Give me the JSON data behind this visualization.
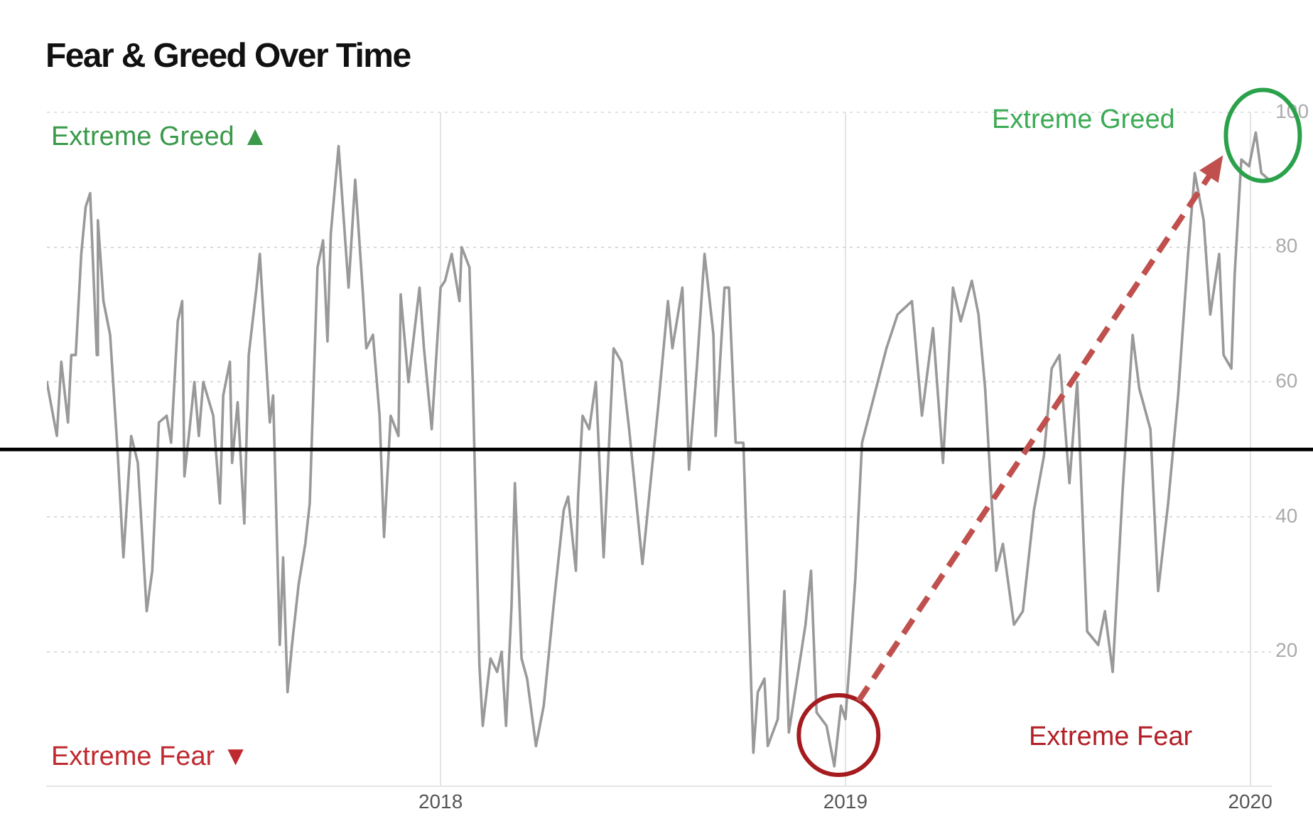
{
  "chart_data": {
    "type": "line",
    "title": "Fear & Greed Over Time",
    "x": [
      "2017-01-11",
      "2017-01-20",
      "2017-01-24",
      "2017-01-30",
      "2017-02-02",
      "2017-02-06",
      "2017-02-11",
      "2017-02-15",
      "2017-02-19",
      "2017-02-25",
      "2017-02-26",
      "2017-03-03",
      "2017-03-09",
      "2017-03-16",
      "2017-03-21",
      "2017-03-28",
      "2017-04-03",
      "2017-04-11",
      "2017-04-16",
      "2017-04-22",
      "2017-04-29",
      "2017-05-03",
      "2017-05-09",
      "2017-05-13",
      "2017-05-15",
      "2017-05-19",
      "2017-05-24",
      "2017-05-28",
      "2017-06-01",
      "2017-06-10",
      "2017-06-16",
      "2017-06-19",
      "2017-06-25",
      "2017-06-27",
      "2017-07-02",
      "2017-07-08",
      "2017-07-12",
      "2017-07-19",
      "2017-07-22",
      "2017-07-27",
      "2017-07-31",
      "2017-08-03",
      "2017-08-09",
      "2017-08-12",
      "2017-08-16",
      "2017-08-20",
      "2017-08-26",
      "2017-09-01",
      "2017-09-05",
      "2017-09-12",
      "2017-09-17",
      "2017-09-21",
      "2017-09-24",
      "2017-10-01",
      "2017-10-10",
      "2017-10-16",
      "2017-10-23",
      "2017-10-26",
      "2017-11-01",
      "2017-11-07",
      "2017-11-11",
      "2017-11-17",
      "2017-11-24",
      "2017-11-26",
      "2017-12-03",
      "2017-12-13",
      "2017-12-17",
      "2017-12-24",
      "2018-01-01",
      "2018-01-05",
      "2018-01-11",
      "2018-01-18",
      "2018-01-20",
      "2018-01-27",
      "2018-01-30",
      "2018-02-05",
      "2018-02-08",
      "2018-02-15",
      "2018-02-21",
      "2018-02-25",
      "2018-03-01",
      "2018-03-06",
      "2018-03-09",
      "2018-03-15",
      "2018-03-20",
      "2018-03-28",
      "2018-04-04",
      "2018-04-13",
      "2018-04-22",
      "2018-04-26",
      "2018-05-03",
      "2018-05-05",
      "2018-05-09",
      "2018-05-15",
      "2018-05-21",
      "2018-05-28",
      "2018-06-06",
      "2018-06-13",
      "2018-06-20",
      "2018-07-02",
      "2018-07-08",
      "2018-07-16",
      "2018-07-25",
      "2018-07-29",
      "2018-08-07",
      "2018-08-13",
      "2018-08-20",
      "2018-08-27",
      "2018-09-04",
      "2018-09-06",
      "2018-09-14",
      "2018-09-18",
      "2018-09-24",
      "2018-10-01",
      "2018-10-10",
      "2018-10-14",
      "2018-10-20",
      "2018-10-23",
      "2018-11-01",
      "2018-11-07",
      "2018-11-11",
      "2018-11-26",
      "2018-12-01",
      "2018-12-06",
      "2018-12-15",
      "2018-12-22",
      "2018-12-28",
      "2019-01-01",
      "2019-01-05",
      "2019-01-10",
      "2019-01-16",
      "2019-01-27",
      "2019-02-07",
      "2019-02-17",
      "2019-03-02",
      "2019-03-11",
      "2019-03-21",
      "2019-03-30",
      "2019-04-08",
      "2019-04-15",
      "2019-04-25",
      "2019-05-01",
      "2019-05-07",
      "2019-05-13",
      "2019-05-17",
      "2019-05-23",
      "2019-06-02",
      "2019-06-10",
      "2019-06-20",
      "2019-06-29",
      "2019-07-06",
      "2019-07-13",
      "2019-07-22",
      "2019-07-29",
      "2019-08-07",
      "2019-08-17",
      "2019-08-23",
      "2019-08-30",
      "2019-09-08",
      "2019-09-17",
      "2019-09-23",
      "2019-10-03",
      "2019-10-10",
      "2019-10-19",
      "2019-10-28",
      "2019-11-06",
      "2019-11-12",
      "2019-11-20",
      "2019-11-26",
      "2019-12-04",
      "2019-12-08",
      "2019-12-15",
      "2019-12-18",
      "2019-12-24",
      "2019-12-31",
      "2020-01-06",
      "2020-01-11",
      "2020-01-18"
    ],
    "values": [
      60,
      52,
      63,
      54,
      64,
      64,
      79,
      86,
      88,
      64,
      84,
      72,
      67,
      49,
      34,
      52,
      48,
      26,
      32,
      54,
      55,
      51,
      69,
      72,
      46,
      52,
      60,
      52,
      60,
      55,
      42,
      58,
      63,
      48,
      57,
      39,
      64,
      74,
      79,
      65,
      54,
      58,
      21,
      34,
      14,
      21,
      30,
      36,
      42,
      77,
      81,
      66,
      82,
      95,
      74,
      90,
      73,
      65,
      67,
      55,
      37,
      55,
      52,
      73,
      60,
      74,
      65,
      53,
      74,
      75,
      79,
      72,
      80,
      77,
      60,
      18,
      9,
      19,
      17,
      20,
      9,
      27,
      45,
      19,
      16,
      6,
      12,
      27,
      41,
      43,
      32,
      43,
      55,
      53,
      60,
      34,
      65,
      63,
      53,
      33,
      43,
      56,
      72,
      65,
      74,
      47,
      62,
      79,
      67,
      52,
      74,
      74,
      51,
      51,
      5,
      14,
      16,
      6,
      10,
      29,
      8,
      24,
      32,
      11,
      9,
      3,
      12,
      10,
      19,
      31,
      51,
      58,
      65,
      70,
      72,
      55,
      68,
      48,
      74,
      69,
      75,
      70,
      59,
      42,
      32,
      36,
      24,
      26,
      41,
      49,
      62,
      64,
      45,
      60,
      23,
      21,
      26,
      17,
      44,
      67,
      59,
      53,
      29,
      42,
      58,
      79,
      91,
      84,
      70,
      79,
      64,
      62,
      76,
      93,
      92,
      97,
      91,
      90
    ],
    "color": "#999999",
    "xlim": [
      "2017-01-11",
      "2020-01-20"
    ],
    "xticks": [
      "2018",
      "2019",
      "2020"
    ],
    "ylim": [
      0,
      100
    ],
    "yticks": [
      {
        "value": 0,
        "label": null
      },
      20,
      40,
      60,
      80,
      100
    ],
    "grid": true,
    "legend": false,
    "marker": "none",
    "line_style": "solid",
    "ref_lines": [
      {
        "axis": "y",
        "value": 50,
        "color": "#000000"
      }
    ],
    "annotations": [
      "Extreme Greed ▲",
      "Extreme Fear ▼",
      "Extreme Greed",
      "Extreme Fear"
    ]
  }
}
